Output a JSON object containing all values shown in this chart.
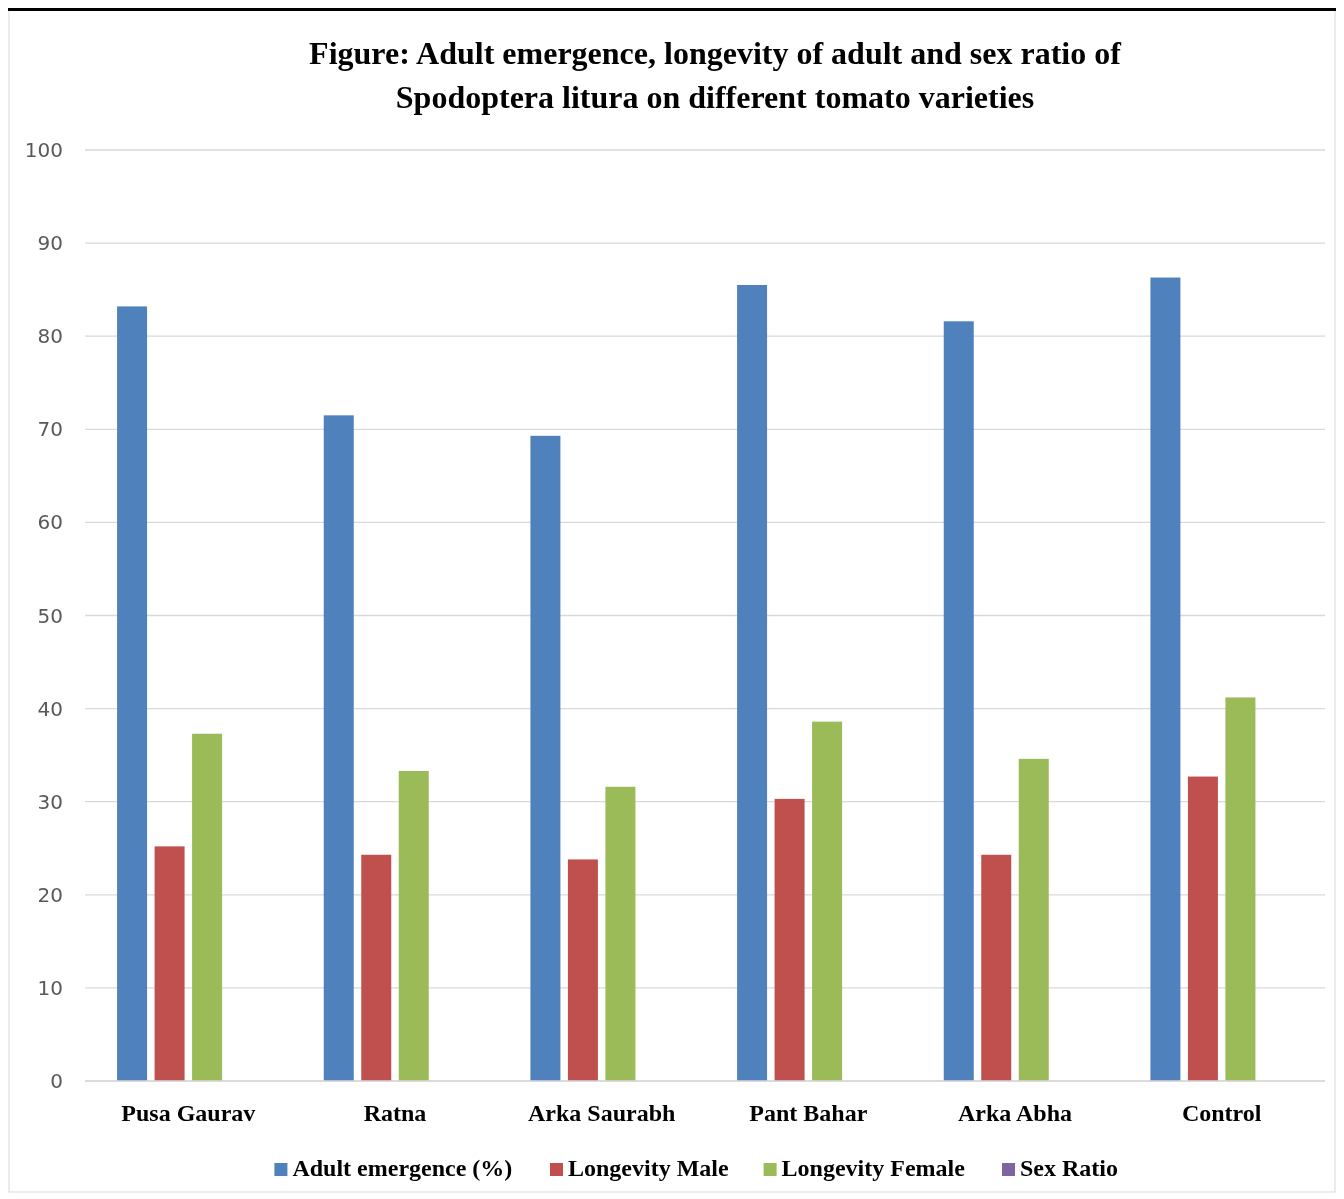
{
  "chart_data": {
    "type": "bar",
    "title": "Figure: Adult emergence, longevity of adult and sex ratio of\nSpodoptera litura on different tomato varieties",
    "categories": [
      "Pusa Gaurav",
      "Ratna",
      "Arka Saurabh",
      "Pant Bahar",
      "Arka Abha",
      "Control"
    ],
    "series": [
      {
        "name": "Adult emergence (%)",
        "color": "#4f81bd",
        "values": [
          83.2,
          71.5,
          69.3,
          85.5,
          81.6,
          86.3
        ]
      },
      {
        "name": "Longevity Male",
        "color": "#c0504d",
        "values": [
          25.2,
          24.3,
          23.8,
          30.3,
          24.3,
          32.7
        ]
      },
      {
        "name": "Longevity Female",
        "color": "#9bbb59",
        "values": [
          37.3,
          33.3,
          31.6,
          38.6,
          34.6,
          41.2
        ]
      },
      {
        "name": "Sex Ratio",
        "color": "#8064a2",
        "values": [
          null,
          null,
          null,
          null,
          null,
          null
        ]
      }
    ],
    "ylim": [
      0,
      100
    ],
    "yticks": [
      0,
      10,
      20,
      30,
      40,
      50,
      60,
      70,
      80,
      90,
      100
    ],
    "grid": "y",
    "legend": "bottom"
  }
}
